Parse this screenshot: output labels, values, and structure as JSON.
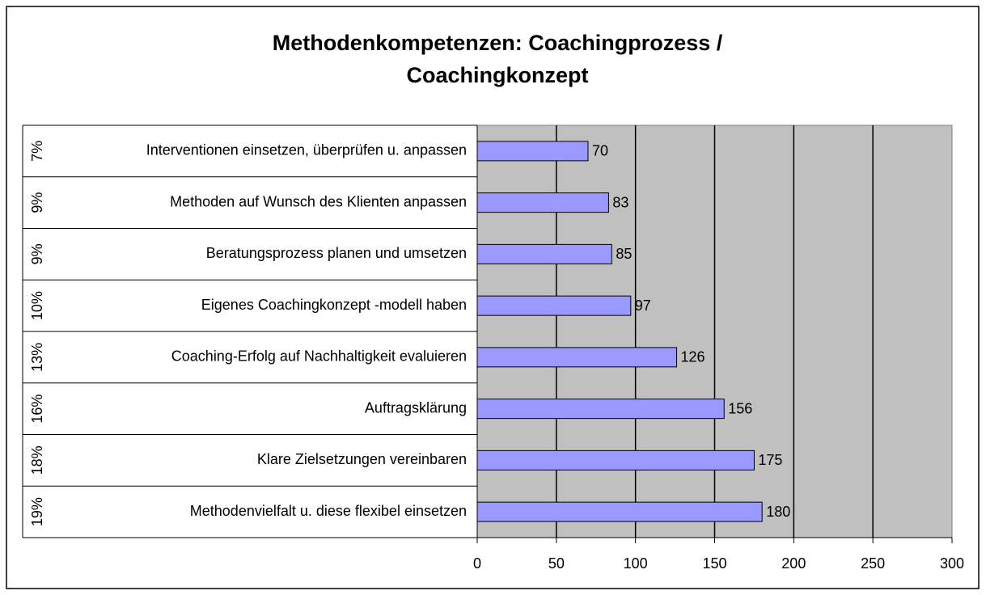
{
  "chart_data": {
    "type": "bar",
    "orientation": "horizontal",
    "title": "Methodenkompetenzen: Coachingprozess / Coachingkonzept",
    "categories": [
      "Interventionen einsetzen, überprüfen u. anpassen",
      "Methoden auf Wunsch des Klienten anpassen",
      "Beratungsprozess planen und umsetzen",
      "Eigenes Coachingkonzept -modell haben",
      "Coaching-Erfolg auf Nachhaltigkeit evaluieren",
      "Auftragsklärung",
      "Klare Zielsetzungen vereinbaren",
      "Methodenvielfalt u. diese flexibel einsetzen"
    ],
    "group_labels": [
      "7%",
      "9%",
      "9%",
      "10%",
      "13%",
      "16%",
      "18%",
      "19%"
    ],
    "values": [
      70,
      83,
      85,
      97,
      126,
      156,
      175,
      180
    ],
    "color": "#9999ff",
    "xlim": [
      0,
      300
    ],
    "xticks": [
      0,
      50,
      100,
      150,
      200,
      250,
      300
    ],
    "grid": true
  }
}
